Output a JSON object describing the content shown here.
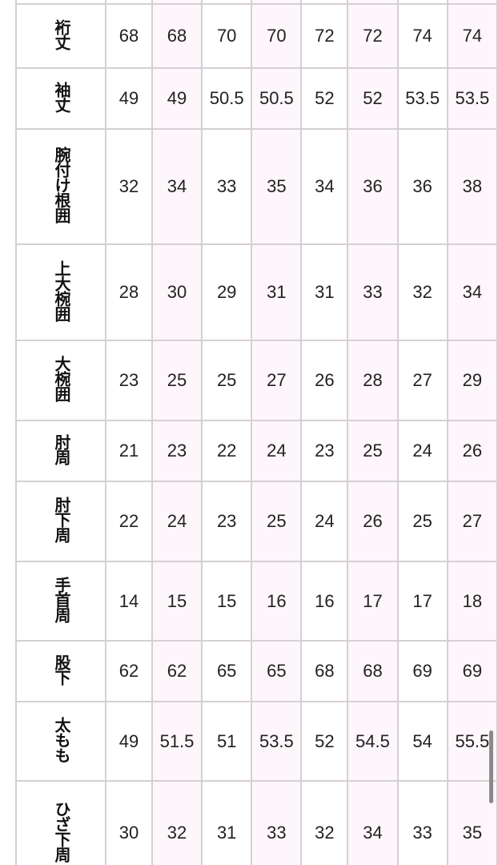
{
  "table": {
    "rows": [
      {
        "label": "",
        "values": [
          "",
          "",
          "",
          "",
          "",
          "",
          "",
          ""
        ]
      },
      {
        "label": "裄丈",
        "values": [
          "68",
          "68",
          "70",
          "70",
          "72",
          "72",
          "74",
          "74"
        ]
      },
      {
        "label": "袖丈",
        "values": [
          "49",
          "49",
          "50.5",
          "50.5",
          "52",
          "52",
          "53.5",
          "53.5"
        ]
      },
      {
        "label": "腕付け根囲",
        "values": [
          "32",
          "34",
          "33",
          "35",
          "34",
          "36",
          "36",
          "38"
        ]
      },
      {
        "label": "上大椀囲",
        "values": [
          "28",
          "30",
          "29",
          "31",
          "31",
          "33",
          "32",
          "34"
        ]
      },
      {
        "label": "大椀囲",
        "values": [
          "23",
          "25",
          "25",
          "27",
          "26",
          "28",
          "27",
          "29"
        ]
      },
      {
        "label": "肘周",
        "values": [
          "21",
          "23",
          "22",
          "24",
          "23",
          "25",
          "24",
          "26"
        ]
      },
      {
        "label": "肘下周",
        "values": [
          "22",
          "24",
          "23",
          "25",
          "24",
          "26",
          "25",
          "27"
        ]
      },
      {
        "label": "手首周",
        "values": [
          "14",
          "15",
          "15",
          "16",
          "16",
          "17",
          "17",
          "18"
        ]
      },
      {
        "label": "股下",
        "values": [
          "62",
          "62",
          "65",
          "65",
          "68",
          "68",
          "69",
          "69"
        ]
      },
      {
        "label": "太もも",
        "values": [
          "49",
          "51.5",
          "51",
          "53.5",
          "52",
          "54.5",
          "54",
          "55.5"
        ]
      },
      {
        "label": "ひざ下周",
        "values": [
          "30",
          "32",
          "31",
          "33",
          "32",
          "34",
          "33",
          "35"
        ]
      }
    ]
  },
  "colors": {
    "alt_column": "#fdf6fb",
    "border": "#d4d0d4"
  }
}
